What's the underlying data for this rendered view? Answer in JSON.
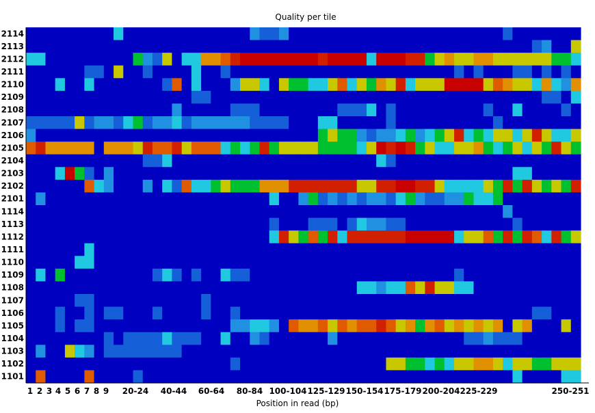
{
  "chart_data": {
    "type": "heatmap",
    "title": "Quality per tile",
    "xlabel": "Position in read (bp)",
    "ylabel": "",
    "x_tick_labels": [
      "1",
      "2",
      "3",
      "4",
      "5",
      "6",
      "7",
      "8",
      "9",
      "20-24",
      "40-44",
      "60-64",
      "80-84",
      "100-104",
      "125-129",
      "150-154",
      "175-179",
      "200-204",
      "225-229",
      "250-251"
    ],
    "y_tick_labels": [
      "2114",
      "2113",
      "2112",
      "2111",
      "2110",
      "2109",
      "2108",
      "2107",
      "2106",
      "2105",
      "2104",
      "2103",
      "2102",
      "2101",
      "1114",
      "1113",
      "1112",
      "1111",
      "1110",
      "1109",
      "1108",
      "1107",
      "1106",
      "1105",
      "1104",
      "1103",
      "1102",
      "1101"
    ],
    "color_scale": [
      "#0000c0",
      "#1560d8",
      "#2090e0",
      "#20c8e0",
      "#00c030",
      "#c8c800",
      "#e09000",
      "#e05a00",
      "#d02000",
      "#c80000"
    ],
    "columns": 57,
    "value_range": [
      0,
      9
    ],
    "grid": false,
    "rows": [
      [
        0,
        0,
        0,
        0,
        0,
        0,
        0,
        0,
        0,
        3,
        0,
        0,
        0,
        0,
        0,
        0,
        0,
        0,
        0,
        0,
        0,
        0,
        0,
        2,
        1,
        1,
        2,
        0,
        0,
        0,
        0,
        0,
        0,
        0,
        0,
        0,
        0,
        0,
        0,
        0,
        0,
        0,
        0,
        0,
        0,
        0,
        0,
        0,
        0,
        1,
        0,
        0,
        0,
        0,
        0,
        0,
        0
      ],
      [
        0,
        0,
        0,
        0,
        0,
        0,
        0,
        0,
        0,
        0,
        0,
        0,
        0,
        0,
        0,
        0,
        0,
        0,
        0,
        0,
        0,
        0,
        0,
        0,
        0,
        0,
        0,
        0,
        0,
        0,
        0,
        0,
        0,
        0,
        0,
        0,
        0,
        0,
        0,
        0,
        0,
        0,
        0,
        0,
        0,
        0,
        0,
        0,
        0,
        0,
        0,
        0,
        1,
        2,
        0,
        0,
        5
      ],
      [
        3,
        3,
        0,
        0,
        0,
        0,
        0,
        0,
        0,
        0,
        0,
        4,
        2,
        1,
        5,
        0,
        3,
        3,
        6,
        6,
        7,
        8,
        9,
        9,
        9,
        9,
        9,
        9,
        9,
        9,
        8,
        9,
        9,
        9,
        9,
        3,
        9,
        9,
        9,
        8,
        8,
        4,
        5,
        6,
        5,
        5,
        6,
        6,
        5,
        5,
        5,
        5,
        5,
        5,
        4,
        4,
        3
      ],
      [
        0,
        0,
        0,
        0,
        0,
        0,
        1,
        1,
        0,
        5,
        0,
        0,
        1,
        0,
        0,
        0,
        0,
        3,
        0,
        0,
        1,
        0,
        0,
        0,
        0,
        0,
        0,
        0,
        0,
        0,
        0,
        0,
        0,
        0,
        0,
        0,
        0,
        0,
        0,
        0,
        0,
        0,
        0,
        0,
        1,
        0,
        1,
        0,
        0,
        0,
        1,
        1,
        0,
        1,
        0,
        1,
        0
      ],
      [
        0,
        0,
        0,
        3,
        0,
        0,
        3,
        0,
        0,
        0,
        0,
        0,
        0,
        0,
        1,
        7,
        0,
        3,
        0,
        0,
        0,
        2,
        5,
        5,
        3,
        0,
        5,
        4,
        4,
        3,
        3,
        5,
        7,
        3,
        5,
        4,
        6,
        5,
        8,
        3,
        5,
        5,
        5,
        9,
        9,
        9,
        9,
        5,
        7,
        6,
        5,
        5,
        3,
        6,
        3,
        2,
        6
      ],
      [
        0,
        0,
        0,
        0,
        0,
        0,
        0,
        0,
        0,
        0,
        0,
        0,
        0,
        0,
        0,
        0,
        0,
        1,
        1,
        0,
        0,
        0,
        0,
        0,
        0,
        0,
        0,
        0,
        0,
        0,
        0,
        0,
        0,
        0,
        0,
        0,
        0,
        0,
        0,
        0,
        0,
        0,
        0,
        0,
        0,
        0,
        0,
        0,
        0,
        0,
        0,
        0,
        0,
        1,
        1,
        0,
        3
      ],
      [
        0,
        0,
        0,
        0,
        0,
        0,
        0,
        0,
        0,
        0,
        0,
        0,
        0,
        0,
        0,
        2,
        0,
        0,
        0,
        0,
        0,
        1,
        1,
        1,
        0,
        0,
        0,
        0,
        0,
        0,
        0,
        0,
        1,
        1,
        1,
        3,
        0,
        1,
        0,
        0,
        0,
        0,
        0,
        0,
        0,
        0,
        0,
        1,
        0,
        0,
        3,
        0,
        0,
        0,
        0,
        1,
        0
      ],
      [
        1,
        1,
        1,
        1,
        1,
        5,
        1,
        2,
        2,
        1,
        3,
        4,
        1,
        2,
        2,
        3,
        1,
        2,
        2,
        2,
        2,
        2,
        2,
        1,
        1,
        1,
        1,
        0,
        0,
        0,
        3,
        3,
        0,
        0,
        0,
        0,
        0,
        1,
        0,
        0,
        0,
        0,
        0,
        0,
        0,
        0,
        0,
        0,
        1,
        0,
        0,
        0,
        0,
        0,
        0,
        0,
        0
      ],
      [
        2,
        0,
        0,
        0,
        0,
        0,
        0,
        0,
        0,
        0,
        0,
        0,
        0,
        0,
        0,
        0,
        0,
        0,
        0,
        0,
        0,
        0,
        0,
        0,
        0,
        0,
        0,
        0,
        0,
        0,
        4,
        5,
        4,
        4,
        2,
        1,
        2,
        2,
        3,
        4,
        2,
        3,
        4,
        5,
        8,
        3,
        4,
        3,
        5,
        5,
        3,
        5,
        8,
        5,
        3,
        3,
        5
      ],
      [
        7,
        8,
        6,
        6,
        6,
        6,
        6,
        0,
        6,
        6,
        6,
        5,
        8,
        7,
        7,
        8,
        5,
        7,
        7,
        7,
        3,
        4,
        3,
        4,
        8,
        4,
        5,
        5,
        5,
        5,
        4,
        4,
        4,
        4,
        3,
        5,
        9,
        8,
        9,
        8,
        4,
        5,
        3,
        3,
        5,
        5,
        6,
        4,
        3,
        4,
        5,
        3,
        5,
        4,
        8,
        5,
        4
      ],
      [
        0,
        0,
        0,
        0,
        0,
        0,
        0,
        0,
        0,
        0,
        0,
        0,
        1,
        1,
        3,
        0,
        0,
        0,
        0,
        0,
        0,
        0,
        0,
        0,
        0,
        0,
        0,
        0,
        0,
        0,
        0,
        0,
        0,
        0,
        0,
        0,
        3,
        1,
        0,
        0,
        0,
        0,
        0,
        0,
        0,
        0,
        0,
        0,
        0,
        0,
        0,
        0,
        0,
        0,
        0,
        0,
        0
      ],
      [
        0,
        0,
        0,
        3,
        9,
        4,
        1,
        0,
        2,
        0,
        0,
        0,
        0,
        0,
        0,
        0,
        0,
        0,
        0,
        0,
        0,
        0,
        0,
        0,
        0,
        0,
        0,
        0,
        0,
        0,
        0,
        0,
        0,
        0,
        0,
        0,
        0,
        0,
        0,
        0,
        0,
        0,
        0,
        0,
        0,
        0,
        0,
        0,
        0,
        0,
        3,
        3,
        0,
        0,
        0,
        0,
        0
      ],
      [
        0,
        0,
        0,
        0,
        0,
        0,
        7,
        3,
        2,
        0,
        0,
        0,
        2,
        0,
        3,
        1,
        7,
        3,
        3,
        4,
        5,
        4,
        4,
        4,
        6,
        6,
        6,
        8,
        8,
        8,
        8,
        8,
        8,
        8,
        5,
        5,
        8,
        8,
        9,
        9,
        8,
        8,
        5,
        3,
        3,
        3,
        3,
        5,
        4,
        8,
        4,
        8,
        5,
        4,
        5,
        4,
        8
      ],
      [
        0,
        2,
        0,
        0,
        0,
        0,
        0,
        0,
        0,
        0,
        0,
        0,
        0,
        0,
        0,
        0,
        0,
        0,
        0,
        0,
        0,
        0,
        0,
        0,
        0,
        3,
        0,
        0,
        2,
        4,
        1,
        2,
        1,
        2,
        1,
        2,
        2,
        1,
        3,
        4,
        2,
        1,
        1,
        2,
        2,
        4,
        3,
        3,
        4,
        0,
        0,
        0,
        0,
        0,
        0,
        0,
        0
      ],
      [
        0,
        0,
        0,
        0,
        0,
        0,
        0,
        0,
        0,
        0,
        0,
        0,
        0,
        0,
        0,
        0,
        0,
        0,
        0,
        0,
        0,
        0,
        0,
        0,
        0,
        0,
        0,
        0,
        0,
        0,
        0,
        0,
        0,
        0,
        0,
        0,
        0,
        0,
        0,
        0,
        0,
        0,
        0,
        0,
        0,
        0,
        0,
        0,
        0,
        2,
        0,
        0,
        0,
        0,
        0,
        0,
        0
      ],
      [
        0,
        0,
        0,
        0,
        0,
        0,
        0,
        0,
        0,
        0,
        0,
        0,
        0,
        0,
        0,
        0,
        0,
        0,
        0,
        0,
        0,
        0,
        0,
        0,
        0,
        1,
        0,
        0,
        0,
        1,
        1,
        1,
        0,
        1,
        3,
        2,
        2,
        1,
        1,
        0,
        0,
        0,
        0,
        0,
        0,
        0,
        0,
        0,
        0,
        0,
        1,
        0,
        0,
        0,
        0,
        0,
        0
      ],
      [
        0,
        0,
        0,
        0,
        0,
        0,
        0,
        0,
        0,
        0,
        0,
        0,
        0,
        0,
        0,
        0,
        0,
        0,
        0,
        0,
        0,
        0,
        0,
        0,
        0,
        3,
        8,
        5,
        4,
        7,
        4,
        8,
        3,
        8,
        8,
        8,
        8,
        8,
        8,
        9,
        9,
        9,
        9,
        9,
        3,
        5,
        5,
        7,
        4,
        8,
        4,
        8,
        7,
        3,
        8,
        4,
        5
      ],
      [
        0,
        0,
        0,
        0,
        0,
        0,
        3,
        0,
        0,
        0,
        0,
        0,
        0,
        0,
        0,
        0,
        0,
        0,
        0,
        0,
        0,
        0,
        0,
        0,
        0,
        0,
        0,
        0,
        0,
        0,
        0,
        0,
        0,
        0,
        0,
        0,
        0,
        0,
        0,
        0,
        0,
        0,
        0,
        0,
        0,
        0,
        0,
        0,
        0,
        0,
        0,
        0,
        0,
        0,
        0,
        0,
        0
      ],
      [
        0,
        0,
        0,
        0,
        0,
        3,
        3,
        0,
        0,
        0,
        0,
        0,
        0,
        0,
        0,
        0,
        0,
        0,
        0,
        0,
        0,
        0,
        0,
        0,
        0,
        0,
        0,
        0,
        0,
        0,
        0,
        0,
        0,
        0,
        0,
        0,
        0,
        0,
        0,
        0,
        0,
        0,
        0,
        0,
        0,
        0,
        0,
        0,
        0,
        0,
        0,
        0,
        0,
        0,
        0,
        0,
        0
      ],
      [
        0,
        3,
        0,
        4,
        0,
        0,
        0,
        0,
        0,
        0,
        0,
        0,
        0,
        1,
        3,
        1,
        0,
        1,
        0,
        0,
        3,
        1,
        1,
        0,
        0,
        0,
        0,
        0,
        0,
        0,
        0,
        0,
        0,
        0,
        0,
        0,
        0,
        0,
        0,
        0,
        0,
        0,
        0,
        0,
        1,
        0,
        0,
        0,
        0,
        0,
        0,
        0,
        0,
        0,
        0,
        0,
        0
      ],
      [
        0,
        0,
        0,
        0,
        0,
        0,
        0,
        0,
        0,
        0,
        0,
        0,
        0,
        0,
        0,
        0,
        0,
        0,
        0,
        0,
        0,
        0,
        0,
        0,
        0,
        0,
        0,
        0,
        0,
        0,
        0,
        0,
        0,
        0,
        3,
        3,
        2,
        3,
        3,
        7,
        5,
        8,
        5,
        5,
        3,
        3,
        0,
        0,
        0,
        0,
        0,
        0,
        0,
        0,
        0,
        0,
        0
      ],
      [
        0,
        0,
        0,
        0,
        0,
        1,
        1,
        0,
        0,
        0,
        0,
        0,
        0,
        0,
        0,
        0,
        0,
        0,
        1,
        0,
        0,
        0,
        0,
        0,
        0,
        0,
        0,
        0,
        0,
        0,
        0,
        0,
        0,
        0,
        0,
        0,
        0,
        0,
        0,
        0,
        0,
        0,
        0,
        0,
        0,
        0,
        0,
        0,
        0,
        0,
        0,
        0,
        0,
        0,
        0,
        0,
        0
      ],
      [
        0,
        0,
        0,
        1,
        0,
        0,
        1,
        0,
        1,
        1,
        0,
        0,
        0,
        1,
        0,
        0,
        0,
        0,
        1,
        0,
        0,
        1,
        0,
        0,
        0,
        0,
        0,
        0,
        0,
        0,
        0,
        0,
        0,
        0,
        0,
        0,
        0,
        0,
        0,
        0,
        0,
        0,
        0,
        0,
        0,
        0,
        0,
        0,
        0,
        0,
        0,
        0,
        1,
        1,
        0,
        0,
        0
      ],
      [
        0,
        0,
        0,
        1,
        0,
        1,
        1,
        0,
        0,
        0,
        0,
        0,
        0,
        0,
        0,
        0,
        0,
        0,
        0,
        0,
        0,
        2,
        2,
        3,
        3,
        2,
        0,
        7,
        6,
        6,
        7,
        5,
        7,
        6,
        7,
        7,
        8,
        7,
        5,
        6,
        4,
        6,
        7,
        5,
        6,
        5,
        6,
        5,
        6,
        0,
        5,
        6,
        0,
        0,
        0,
        5,
        0
      ],
      [
        0,
        0,
        0,
        0,
        0,
        0,
        0,
        0,
        1,
        0,
        1,
        1,
        1,
        1,
        3,
        1,
        1,
        1,
        0,
        0,
        3,
        0,
        0,
        2,
        1,
        0,
        0,
        0,
        0,
        0,
        0,
        2,
        0,
        0,
        0,
        0,
        0,
        0,
        0,
        0,
        0,
        0,
        0,
        0,
        0,
        1,
        1,
        2,
        1,
        1,
        1,
        0,
        0,
        0,
        0,
        0,
        0
      ],
      [
        0,
        2,
        0,
        0,
        5,
        3,
        2,
        0,
        1,
        1,
        1,
        1,
        1,
        1,
        1,
        1,
        0,
        0,
        0,
        0,
        0,
        0,
        0,
        0,
        0,
        0,
        0,
        0,
        0,
        0,
        0,
        0,
        0,
        0,
        0,
        0,
        0,
        0,
        0,
        0,
        0,
        0,
        0,
        0,
        0,
        0,
        0,
        0,
        0,
        0,
        0,
        0,
        0,
        0,
        0,
        0,
        0
      ],
      [
        0,
        0,
        0,
        0,
        0,
        0,
        0,
        0,
        0,
        0,
        0,
        0,
        0,
        0,
        0,
        0,
        0,
        0,
        0,
        0,
        0,
        1,
        0,
        0,
        0,
        0,
        0,
        0,
        0,
        0,
        0,
        0,
        0,
        0,
        0,
        0,
        0,
        5,
        5,
        4,
        4,
        3,
        4,
        3,
        5,
        5,
        6,
        6,
        5,
        3,
        5,
        5,
        4,
        4,
        5,
        5,
        5
      ],
      [
        0,
        7,
        0,
        0,
        0,
        0,
        7,
        0,
        0,
        0,
        0,
        1,
        0,
        0,
        0,
        0,
        0,
        0,
        0,
        0,
        0,
        0,
        0,
        0,
        0,
        0,
        0,
        0,
        0,
        0,
        0,
        0,
        0,
        0,
        0,
        0,
        0,
        0,
        0,
        0,
        0,
        0,
        0,
        0,
        0,
        0,
        0,
        0,
        0,
        0,
        3,
        0,
        0,
        0,
        0,
        3,
        3
      ]
    ]
  }
}
